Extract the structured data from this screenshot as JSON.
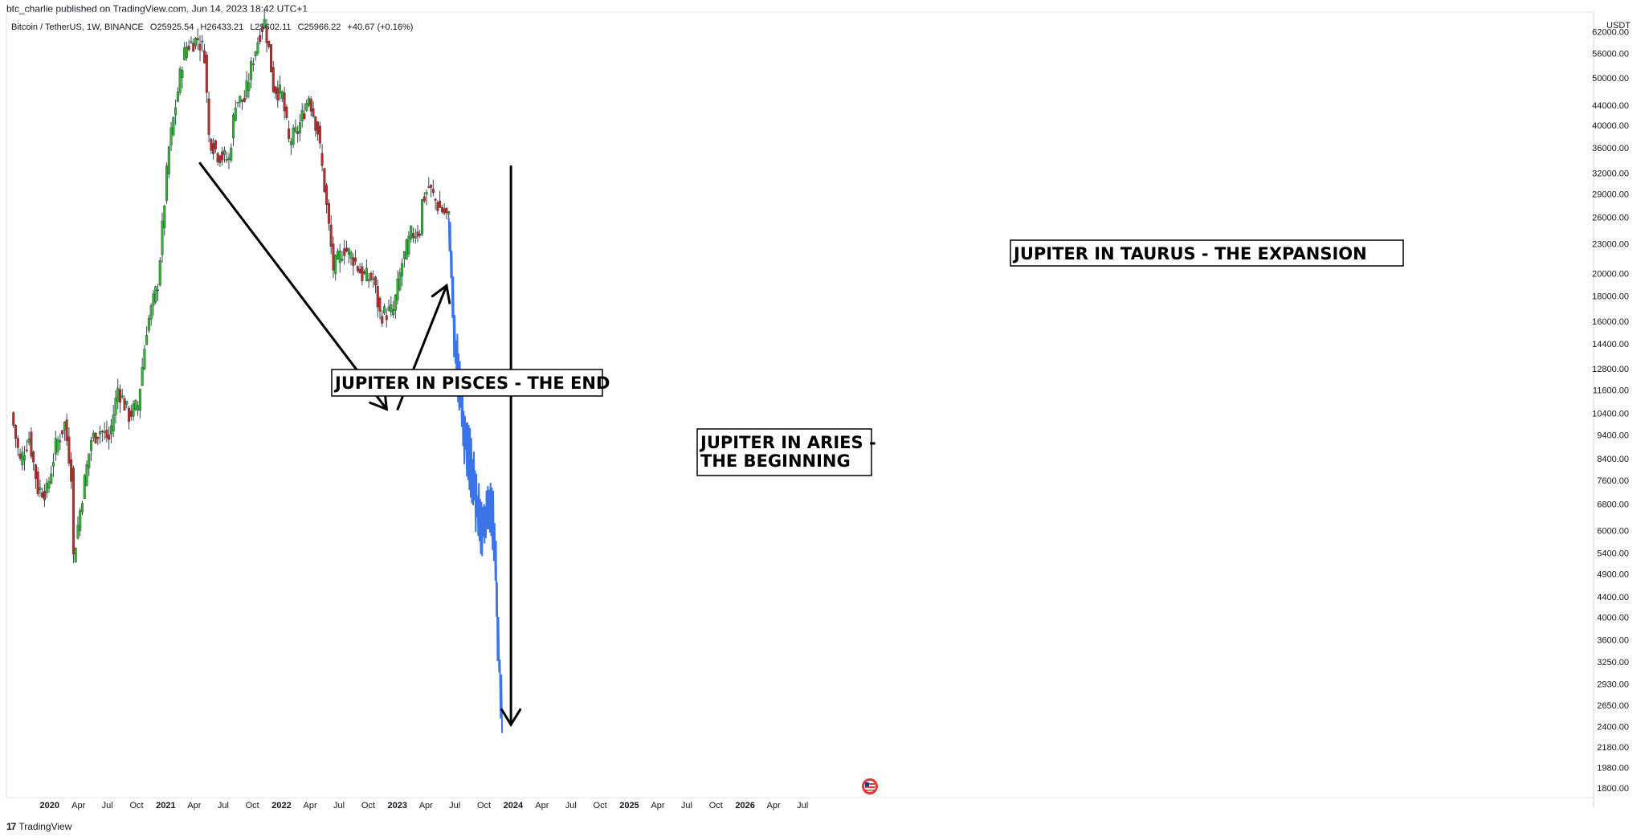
{
  "header": {
    "publisher": "btc_charlie published on TradingView.com, Jun 14, 2023 18:42 UTC+1",
    "symbol": "Bitcoin / TetherUS, 1W, BINANCE",
    "open": "O25925.54",
    "high": "H26433.21",
    "low": "L25602.11",
    "close": "C25966.22",
    "change": "+40.67 (+0.16%)",
    "currency": "USDT"
  },
  "footer": {
    "brand": "TradingView",
    "brand_mark": "17"
  },
  "colors": {
    "up": "#26a69a",
    "up_body": "#2eb82e",
    "down": "#c62828",
    "projection": "#3b74e8",
    "annotation": "#000000"
  },
  "chart_data": {
    "type": "candlestick",
    "scale": "log",
    "ylim": [
      1720,
      68000
    ],
    "y_ticks": [
      62000,
      56000,
      50000,
      44000,
      40000,
      36000,
      32000,
      29000,
      26000,
      23000,
      20000,
      18000,
      16000,
      14400,
      12800,
      11600,
      10400,
      9400,
      8400,
      7600,
      6800,
      6000,
      5400,
      4900,
      4400,
      4000,
      3600,
      3250,
      2930,
      2650,
      2400,
      2180,
      1980,
      1800
    ],
    "y_tick_labels": [
      "62000.00",
      "56000.00",
      "50000.00",
      "44000.00",
      "40000.00",
      "36000.00",
      "32000.00",
      "29000.00",
      "26000.00",
      "23000.00",
      "20000.00",
      "18000.00",
      "16000.00",
      "14400.00",
      "12800.00",
      "11600.00",
      "10400.00",
      "9400.00",
      "8400.00",
      "7600.00",
      "6800.00",
      "6000.00",
      "5400.00",
      "4900.00",
      "4400.00",
      "4000.00",
      "3600.00",
      "3250.00",
      "2930.00",
      "2650.00",
      "2400.00",
      "2180.00",
      "1980.00",
      "1800.00"
    ],
    "x_ticks": [
      {
        "label": "2020",
        "date": "2020-01-01",
        "year": true
      },
      {
        "label": "Apr",
        "date": "2020-04-01"
      },
      {
        "label": "Jul",
        "date": "2020-07-01"
      },
      {
        "label": "Oct",
        "date": "2020-10-01"
      },
      {
        "label": "2021",
        "date": "2021-01-01",
        "year": true
      },
      {
        "label": "Apr",
        "date": "2021-04-01"
      },
      {
        "label": "Jul",
        "date": "2021-07-01"
      },
      {
        "label": "Oct",
        "date": "2021-10-01"
      },
      {
        "label": "2022",
        "date": "2022-01-01",
        "year": true
      },
      {
        "label": "Apr",
        "date": "2022-04-01"
      },
      {
        "label": "Jul",
        "date": "2022-07-01"
      },
      {
        "label": "Oct",
        "date": "2022-10-01"
      },
      {
        "label": "2023",
        "date": "2023-01-01",
        "year": true
      },
      {
        "label": "Apr",
        "date": "2023-04-01"
      },
      {
        "label": "Jul",
        "date": "2023-07-01"
      },
      {
        "label": "Oct",
        "date": "2023-10-01"
      },
      {
        "label": "2024",
        "date": "2024-01-01",
        "year": true
      },
      {
        "label": "Apr",
        "date": "2024-04-01"
      },
      {
        "label": "Jul",
        "date": "2024-07-01"
      },
      {
        "label": "Oct",
        "date": "2024-10-01"
      },
      {
        "label": "2025",
        "date": "2025-01-01",
        "year": true
      },
      {
        "label": "Apr",
        "date": "2025-04-01"
      },
      {
        "label": "Jul",
        "date": "2025-07-01"
      },
      {
        "label": "Oct",
        "date": "2025-10-01"
      },
      {
        "label": "2026",
        "date": "2026-01-01",
        "year": true
      },
      {
        "label": "Apr",
        "date": "2026-04-01"
      },
      {
        "label": "Jul",
        "date": "2026-07-01"
      }
    ],
    "candle_points": [
      [
        "2019-09-02",
        10400
      ],
      [
        "2019-09-30",
        8300
      ],
      [
        "2019-10-28",
        9300
      ],
      [
        "2019-11-25",
        7300
      ],
      [
        "2019-12-23",
        7200
      ],
      [
        "2020-01-20",
        8900
      ],
      [
        "2020-02-17",
        9900
      ],
      [
        "2020-03-09",
        7900
      ],
      [
        "2020-03-16",
        5300
      ],
      [
        "2020-04-13",
        7100
      ],
      [
        "2020-05-11",
        9200
      ],
      [
        "2020-06-08",
        9600
      ],
      [
        "2020-07-06",
        9200
      ],
      [
        "2020-08-03",
        11700
      ],
      [
        "2020-09-07",
        10300
      ],
      [
        "2020-10-05",
        10800
      ],
      [
        "2020-11-02",
        15500
      ],
      [
        "2020-12-07",
        19100
      ],
      [
        "2020-12-28",
        28000
      ],
      [
        "2021-01-11",
        36000
      ],
      [
        "2021-02-08",
        47000
      ],
      [
        "2021-02-22",
        54000
      ],
      [
        "2021-03-08",
        58000
      ],
      [
        "2021-04-12",
        60000
      ],
      [
        "2021-05-03",
        56000
      ],
      [
        "2021-05-17",
        38000
      ],
      [
        "2021-06-14",
        35000
      ],
      [
        "2021-07-19",
        34000
      ],
      [
        "2021-08-09",
        45000
      ],
      [
        "2021-09-06",
        45000
      ],
      [
        "2021-10-04",
        55000
      ],
      [
        "2021-10-25",
        62000
      ],
      [
        "2021-11-08",
        65000
      ],
      [
        "2021-11-22",
        57000
      ],
      [
        "2021-12-06",
        48000
      ],
      [
        "2022-01-03",
        46000
      ],
      [
        "2022-01-24",
        37000
      ],
      [
        "2022-02-21",
        39000
      ],
      [
        "2022-03-28",
        46000
      ],
      [
        "2022-04-25",
        39000
      ],
      [
        "2022-05-16",
        30000
      ],
      [
        "2022-06-13",
        20500
      ],
      [
        "2022-07-18",
        22500
      ],
      [
        "2022-08-15",
        21500
      ],
      [
        "2022-09-12",
        19800
      ],
      [
        "2022-10-17",
        19500
      ],
      [
        "2022-11-07",
        16500
      ],
      [
        "2022-12-19",
        16800
      ],
      [
        "2023-01-16",
        21000
      ],
      [
        "2023-02-13",
        24000
      ],
      [
        "2023-03-13",
        24500
      ],
      [
        "2023-03-20",
        28000
      ],
      [
        "2023-04-10",
        30000
      ],
      [
        "2023-05-08",
        27500
      ],
      [
        "2023-06-12",
        25966
      ]
    ],
    "projection_points": [
      [
        "2023-06-12",
        25966
      ],
      [
        "2023-06-19",
        21000
      ],
      [
        "2023-06-26",
        17000
      ],
      [
        "2023-07-03",
        14000
      ],
      [
        "2023-07-17",
        12000
      ],
      [
        "2023-07-31",
        9500
      ],
      [
        "2023-08-14",
        8800
      ],
      [
        "2023-08-28",
        7600
      ],
      [
        "2023-09-11",
        6700
      ],
      [
        "2023-09-25",
        6300
      ],
      [
        "2023-10-09",
        6400
      ],
      [
        "2023-10-30",
        6500
      ],
      [
        "2023-11-06",
        5400
      ],
      [
        "2023-11-13",
        3700
      ],
      [
        "2023-11-20",
        3100
      ],
      [
        "2023-11-27",
        2700
      ]
    ],
    "annotations": [
      {
        "id": "pisces",
        "line1": "JUPITER IN PISCES - THE END",
        "line2": ""
      },
      {
        "id": "aries",
        "line1": "JUPITER IN ARIES -",
        "line2": "THE BEGINNING"
      },
      {
        "id": "taurus",
        "line1": "JUPITER IN TAURUS - THE EXPANSION",
        "line2": ""
      }
    ],
    "arrows": [
      {
        "id": "arrow-pisces",
        "from": [
          "2021-04-19",
          33500
        ],
        "to": [
          "2022-11-28",
          10600
        ]
      },
      {
        "id": "arrow-aries",
        "from": [
          "2023-01-02",
          10600
        ],
        "to": [
          "2023-06-05",
          18900
        ]
      },
      {
        "id": "arrow-taurus",
        "from": [
          "2023-12-25",
          33000
        ],
        "to": [
          "2023-12-25",
          2420
        ]
      }
    ]
  }
}
